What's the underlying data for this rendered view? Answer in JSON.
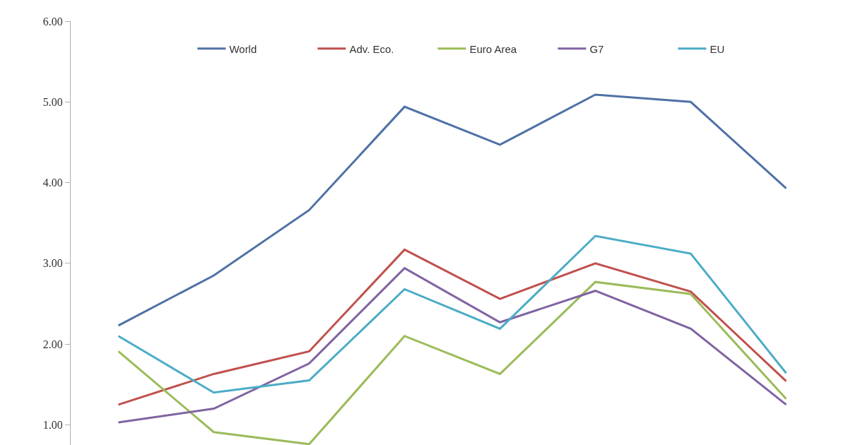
{
  "chart_data": {
    "type": "line",
    "categories": [
      null,
      null,
      null,
      null,
      null,
      null,
      null,
      null
    ],
    "ylim": [
      0.75,
      6.0
    ],
    "yticks": [
      {
        "value": 1,
        "label": "1.00"
      },
      {
        "value": 2,
        "label": "2.00"
      },
      {
        "value": 3,
        "label": "3.00"
      },
      {
        "value": 4,
        "label": "4.00"
      },
      {
        "value": 5,
        "label": "5.00"
      },
      {
        "value": 6,
        "label": "6.00"
      }
    ],
    "tick_labels": "y",
    "legend": "top",
    "series": [
      {
        "name": "World",
        "color": "#4f71a6",
        "values": [
          2.23,
          2.85,
          3.66,
          4.94,
          4.47,
          5.09,
          5.0,
          3.93
        ]
      },
      {
        "name": "Adv. Eco.",
        "color": "#c0504d",
        "values": [
          1.25,
          1.63,
          1.91,
          3.17,
          2.56,
          3.0,
          2.65,
          1.54
        ]
      },
      {
        "name": "Euro Area",
        "color": "#9bbb59",
        "values": [
          1.91,
          0.91,
          0.76,
          2.1,
          1.63,
          2.77,
          2.62,
          1.32
        ]
      },
      {
        "name": "G7",
        "color": "#8064a2",
        "values": [
          1.03,
          1.2,
          1.76,
          2.94,
          2.27,
          2.66,
          2.19,
          1.25
        ]
      },
      {
        "name": "EU",
        "color": "#4bacc6",
        "values": [
          2.1,
          1.4,
          1.55,
          2.68,
          2.19,
          3.34,
          3.12,
          1.64
        ]
      }
    ]
  }
}
